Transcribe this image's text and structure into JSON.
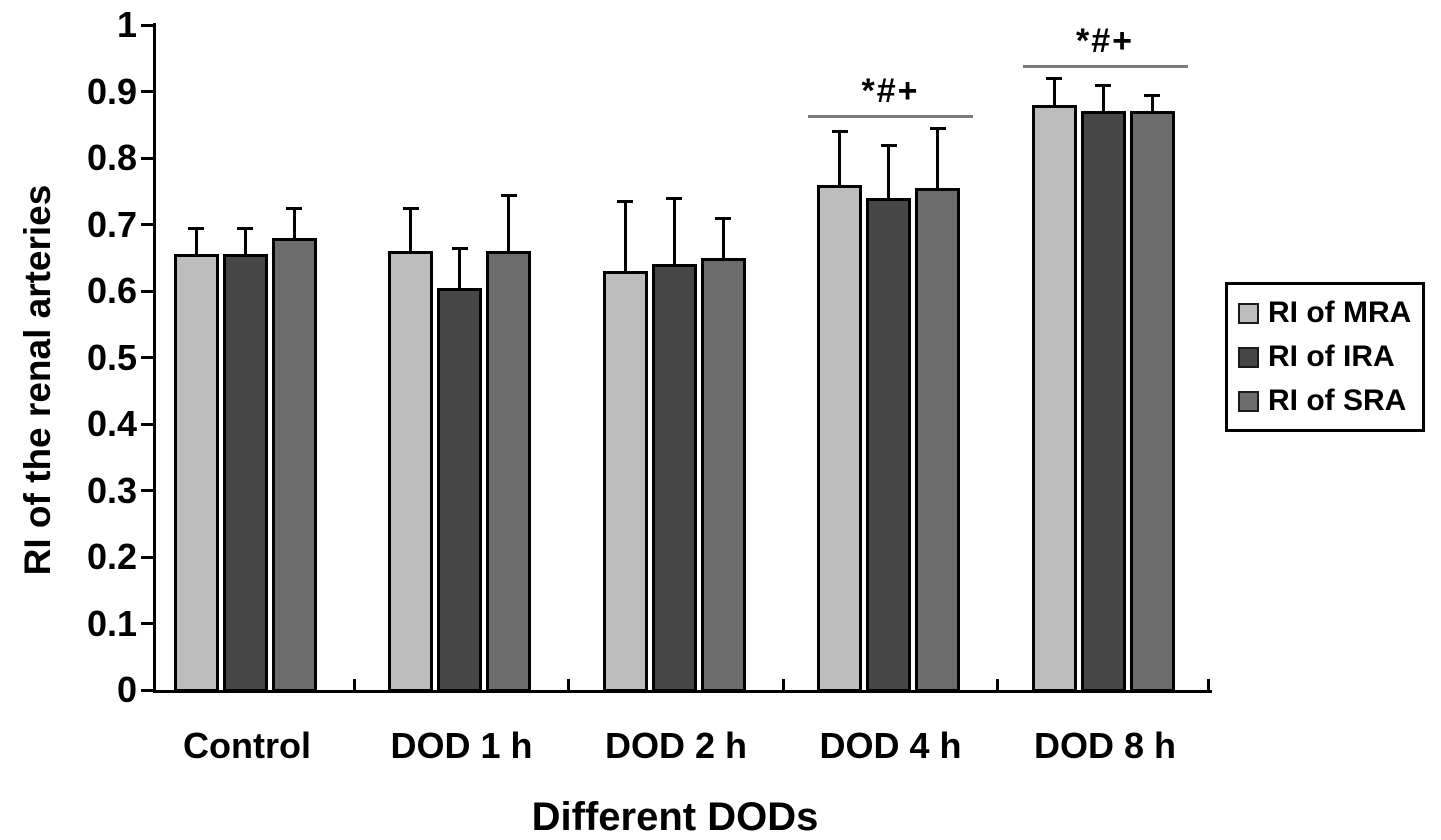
{
  "chart_data": {
    "type": "bar",
    "title": "",
    "xlabel": "Different DODs",
    "ylabel": "RI of the renal arteries",
    "categories": [
      "Control",
      "DOD 1 h",
      "DOD 2 h",
      "DOD 4 h",
      "DOD 8 h"
    ],
    "series": [
      {
        "name": "RI of MRA",
        "color": "#bdbdbd",
        "values": [
          0.655,
          0.66,
          0.63,
          0.76,
          0.88
        ],
        "errors_plus": [
          0.04,
          0.065,
          0.105,
          0.08,
          0.04
        ]
      },
      {
        "name": "RI of IRA",
        "color": "#474747",
        "values": [
          0.655,
          0.605,
          0.64,
          0.74,
          0.87
        ],
        "errors_plus": [
          0.04,
          0.06,
          0.1,
          0.08,
          0.04
        ]
      },
      {
        "name": "RI of SRA",
        "color": "#6c6c6c",
        "values": [
          0.68,
          0.66,
          0.65,
          0.755,
          0.87
        ],
        "errors_plus": [
          0.045,
          0.085,
          0.06,
          0.09,
          0.025
        ]
      }
    ],
    "ylim": [
      0,
      1
    ],
    "y_tick_labels": [
      "0",
      "0.1",
      "0.2",
      "0.3",
      "0.4",
      "0.5",
      "0.6",
      "0.7",
      "0.8",
      "0.9",
      "1"
    ],
    "annotations": [
      {
        "category": "DOD 4 h",
        "text": "*#+"
      },
      {
        "category": "DOD 8 h",
        "text": "*#+"
      }
    ],
    "legend": {
      "position": "right",
      "entries": [
        "RI of MRA",
        "RI of IRA",
        "RI of SRA"
      ]
    },
    "grid": false,
    "error_bars": "upper-only",
    "axis_color": "#000000",
    "annotation_line_color": "#7b7b7b"
  }
}
